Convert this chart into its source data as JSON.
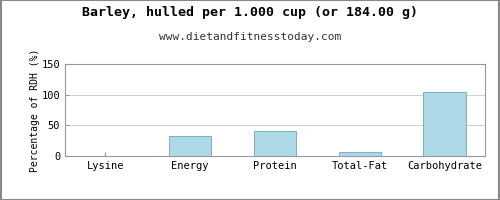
{
  "title": "Barley, hulled per 1.000 cup (or 184.00 g)",
  "subtitle": "www.dietandfitnesstoday.com",
  "categories": [
    "Lysine",
    "Energy",
    "Protein",
    "Total-Fat",
    "Carbohydrate"
  ],
  "values": [
    0.5,
    33,
    40,
    7,
    104
  ],
  "bar_color": "#add8e6",
  "bar_edge_color": "#7ab0c8",
  "ylabel": "Percentage of RDH (%)",
  "ylim": [
    0,
    150
  ],
  "yticks": [
    0,
    50,
    100,
    150
  ],
  "background_color": "#ffffff",
  "plot_bg_color": "#ffffff",
  "title_fontsize": 9.5,
  "subtitle_fontsize": 8,
  "ylabel_fontsize": 7,
  "tick_fontsize": 7.5,
  "grid_color": "#d0d0d0",
  "border_color": "#aaaaaa"
}
